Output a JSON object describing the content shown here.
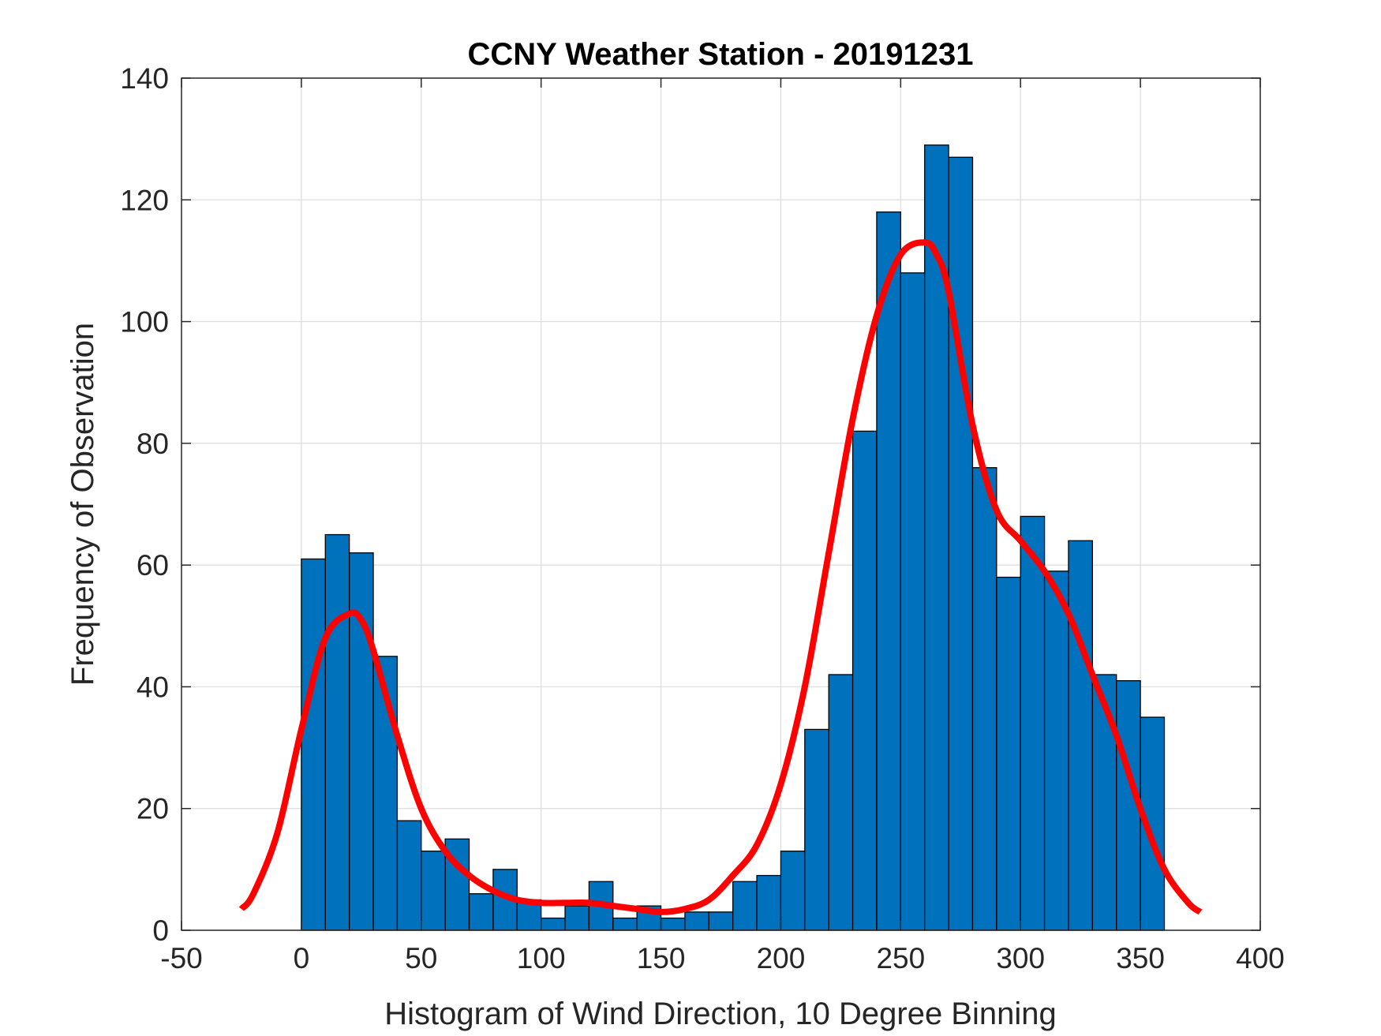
{
  "chart_data": {
    "type": "bar",
    "title": "CCNY Weather Station - 20191231",
    "xlabel": "Histogram of Wind Direction, 10 Degree Binning",
    "ylabel": "Frequency of Observation",
    "xlim": [
      -50,
      400
    ],
    "ylim": [
      0,
      140
    ],
    "grid": true,
    "xticks": [
      -50,
      0,
      50,
      100,
      150,
      200,
      250,
      300,
      350,
      400
    ],
    "yticks": [
      0,
      20,
      40,
      60,
      80,
      100,
      120,
      140
    ],
    "bin_width": 10,
    "bin_starts": [
      0,
      10,
      20,
      30,
      40,
      50,
      60,
      70,
      80,
      90,
      100,
      110,
      120,
      130,
      140,
      150,
      160,
      170,
      180,
      190,
      200,
      210,
      220,
      230,
      240,
      250,
      260,
      270,
      280,
      290,
      300,
      310,
      320,
      330,
      340,
      350
    ],
    "values": [
      61,
      65,
      62,
      45,
      18,
      13,
      15,
      6,
      10,
      5,
      2,
      4,
      8,
      2,
      4,
      2,
      3,
      3,
      8,
      9,
      13,
      33,
      42,
      82,
      118,
      108,
      129,
      127,
      76,
      58,
      68,
      59,
      64,
      42,
      41,
      35
    ],
    "bar_color": "#0072BD",
    "bar_edge_color": "#000000",
    "fit_curve": {
      "color": "#FF0000",
      "x": [
        -25,
        -20,
        -10,
        0,
        10,
        20,
        25,
        30,
        40,
        50,
        60,
        70,
        80,
        90,
        100,
        110,
        120,
        130,
        140,
        150,
        160,
        170,
        180,
        190,
        200,
        210,
        220,
        230,
        240,
        250,
        260,
        265,
        270,
        280,
        290,
        300,
        310,
        320,
        330,
        340,
        350,
        360,
        370,
        375
      ],
      "y": [
        3.5,
        6,
        16,
        33,
        48,
        52,
        51,
        46,
        32,
        20,
        13,
        9,
        6.5,
        5,
        4.5,
        4.5,
        4.5,
        4,
        3.5,
        3,
        3.5,
        5,
        9,
        14,
        24,
        40,
        62,
        84,
        101,
        111,
        113,
        111,
        105,
        83,
        69,
        64,
        59,
        52,
        42,
        32,
        20,
        10,
        4.5,
        3
      ]
    }
  }
}
